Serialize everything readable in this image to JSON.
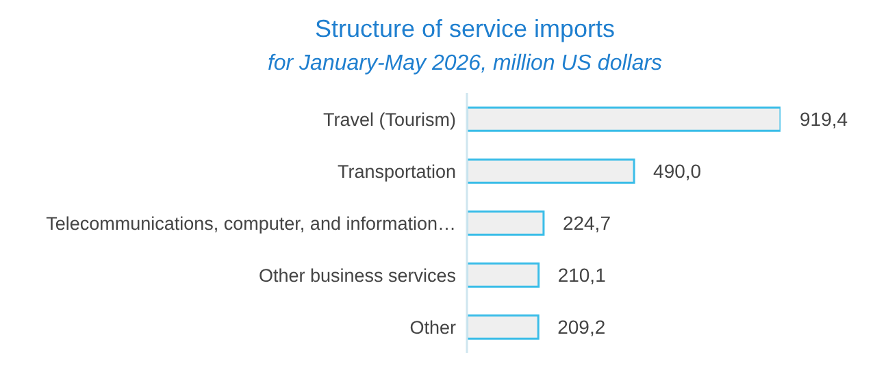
{
  "chart_data": {
    "type": "bar",
    "orientation": "horizontal",
    "title": "Structure of service imports",
    "subtitle": "for January-May 2026, million US dollars",
    "categories": [
      "Travel (Tourism)",
      "Transportation",
      "Telecommunications, computer, and information…",
      "Other business services",
      "Other"
    ],
    "values": [
      919.4,
      490.0,
      224.7,
      210.1,
      209.2
    ],
    "value_labels": [
      "919,4",
      "490,0",
      "224,7",
      "210,1",
      "209,2"
    ],
    "color": "#3bbde8",
    "grid": false,
    "legend": false
  }
}
